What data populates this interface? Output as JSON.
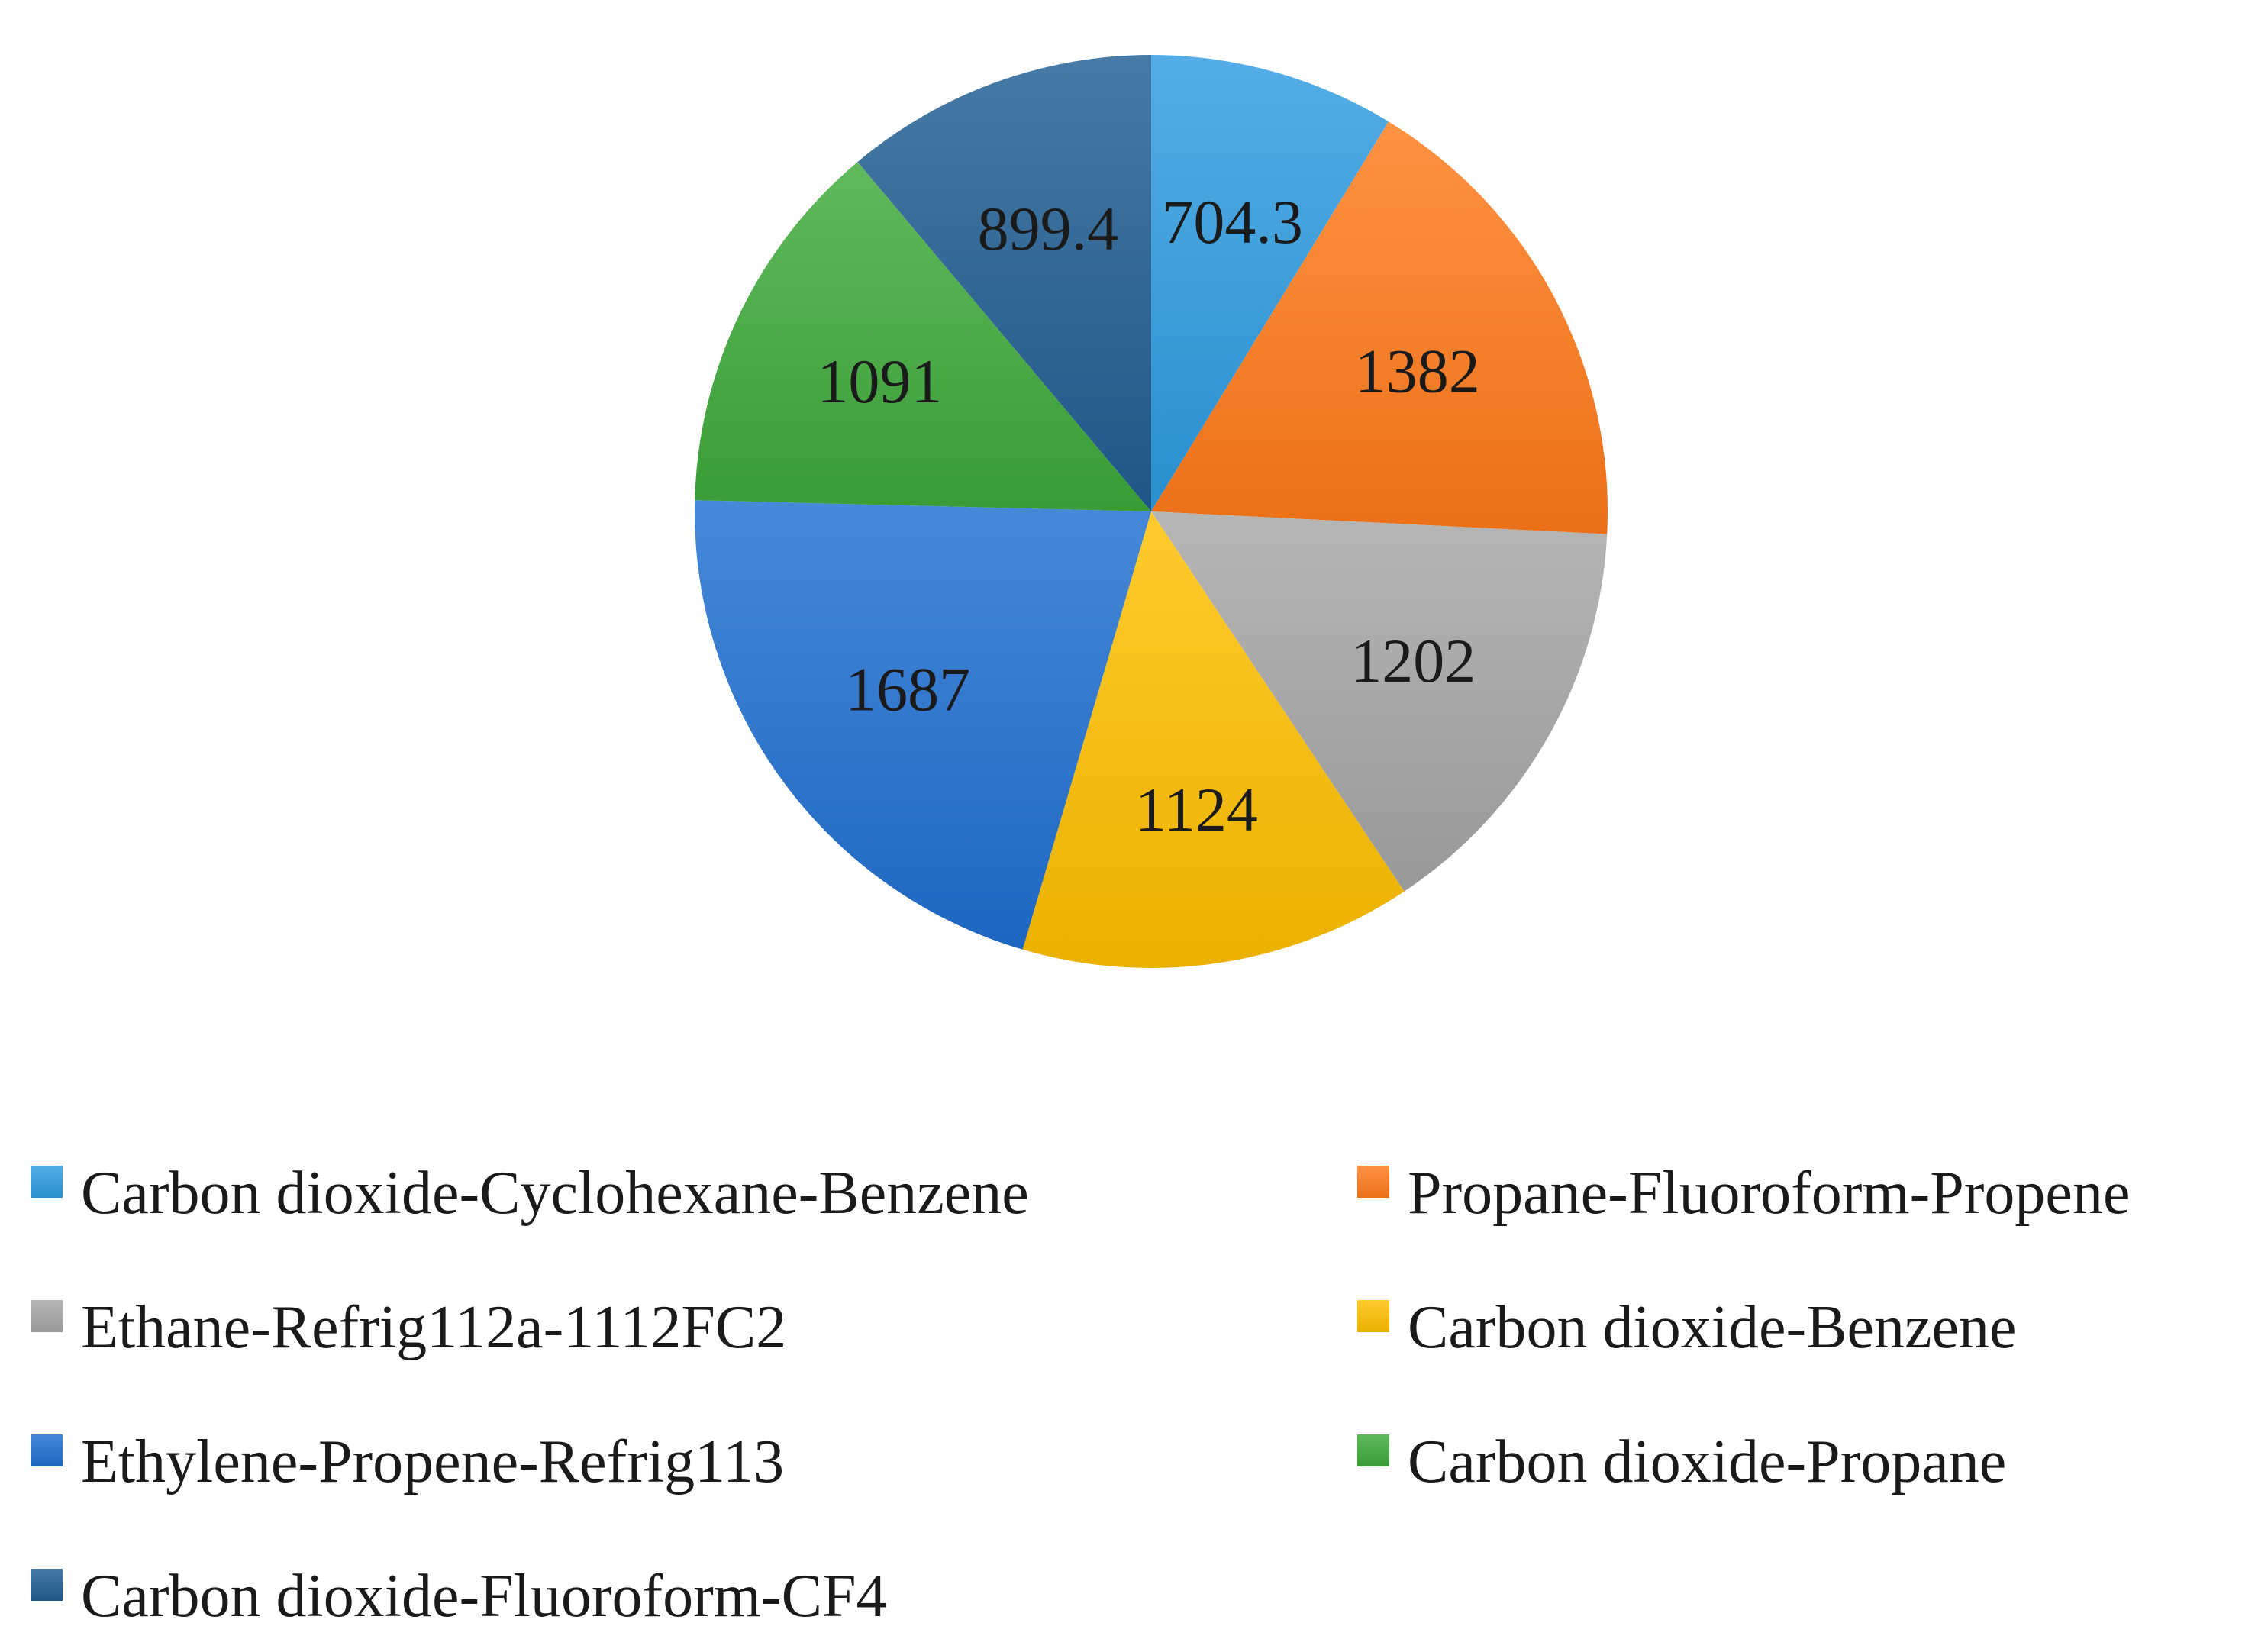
{
  "chart_data": {
    "type": "pie",
    "title": "",
    "series": [
      {
        "values": [
          704.3,
          1382,
          1202,
          1124,
          1687,
          1091,
          899.4
        ],
        "data_labels": [
          "704.3",
          "1382",
          "1202",
          "1124",
          "1687",
          "1091",
          "899.4"
        ]
      }
    ],
    "categories": [
      "Carbon dioxide-Cyclohexane-Benzene",
      "Propane-Fluoroform-Propene",
      "Ethane-Refrig112a-1112FC2",
      "Carbon dioxide-Benzene",
      "Ethylene-Propene-Refrig113",
      "Carbon dioxide-Propane",
      "Carbon dioxide-Fluoroform-CF4"
    ],
    "colors": [
      "#2E9BE0",
      "#FF7A1A",
      "#A6A6A6",
      "#FFC000",
      "#1F6FD1",
      "#3EAA3A",
      "#1F5D92"
    ],
    "start_angle": "12 o'clock",
    "direction": "clockwise",
    "legend_placement": "bottom",
    "legend_columns": 2
  }
}
